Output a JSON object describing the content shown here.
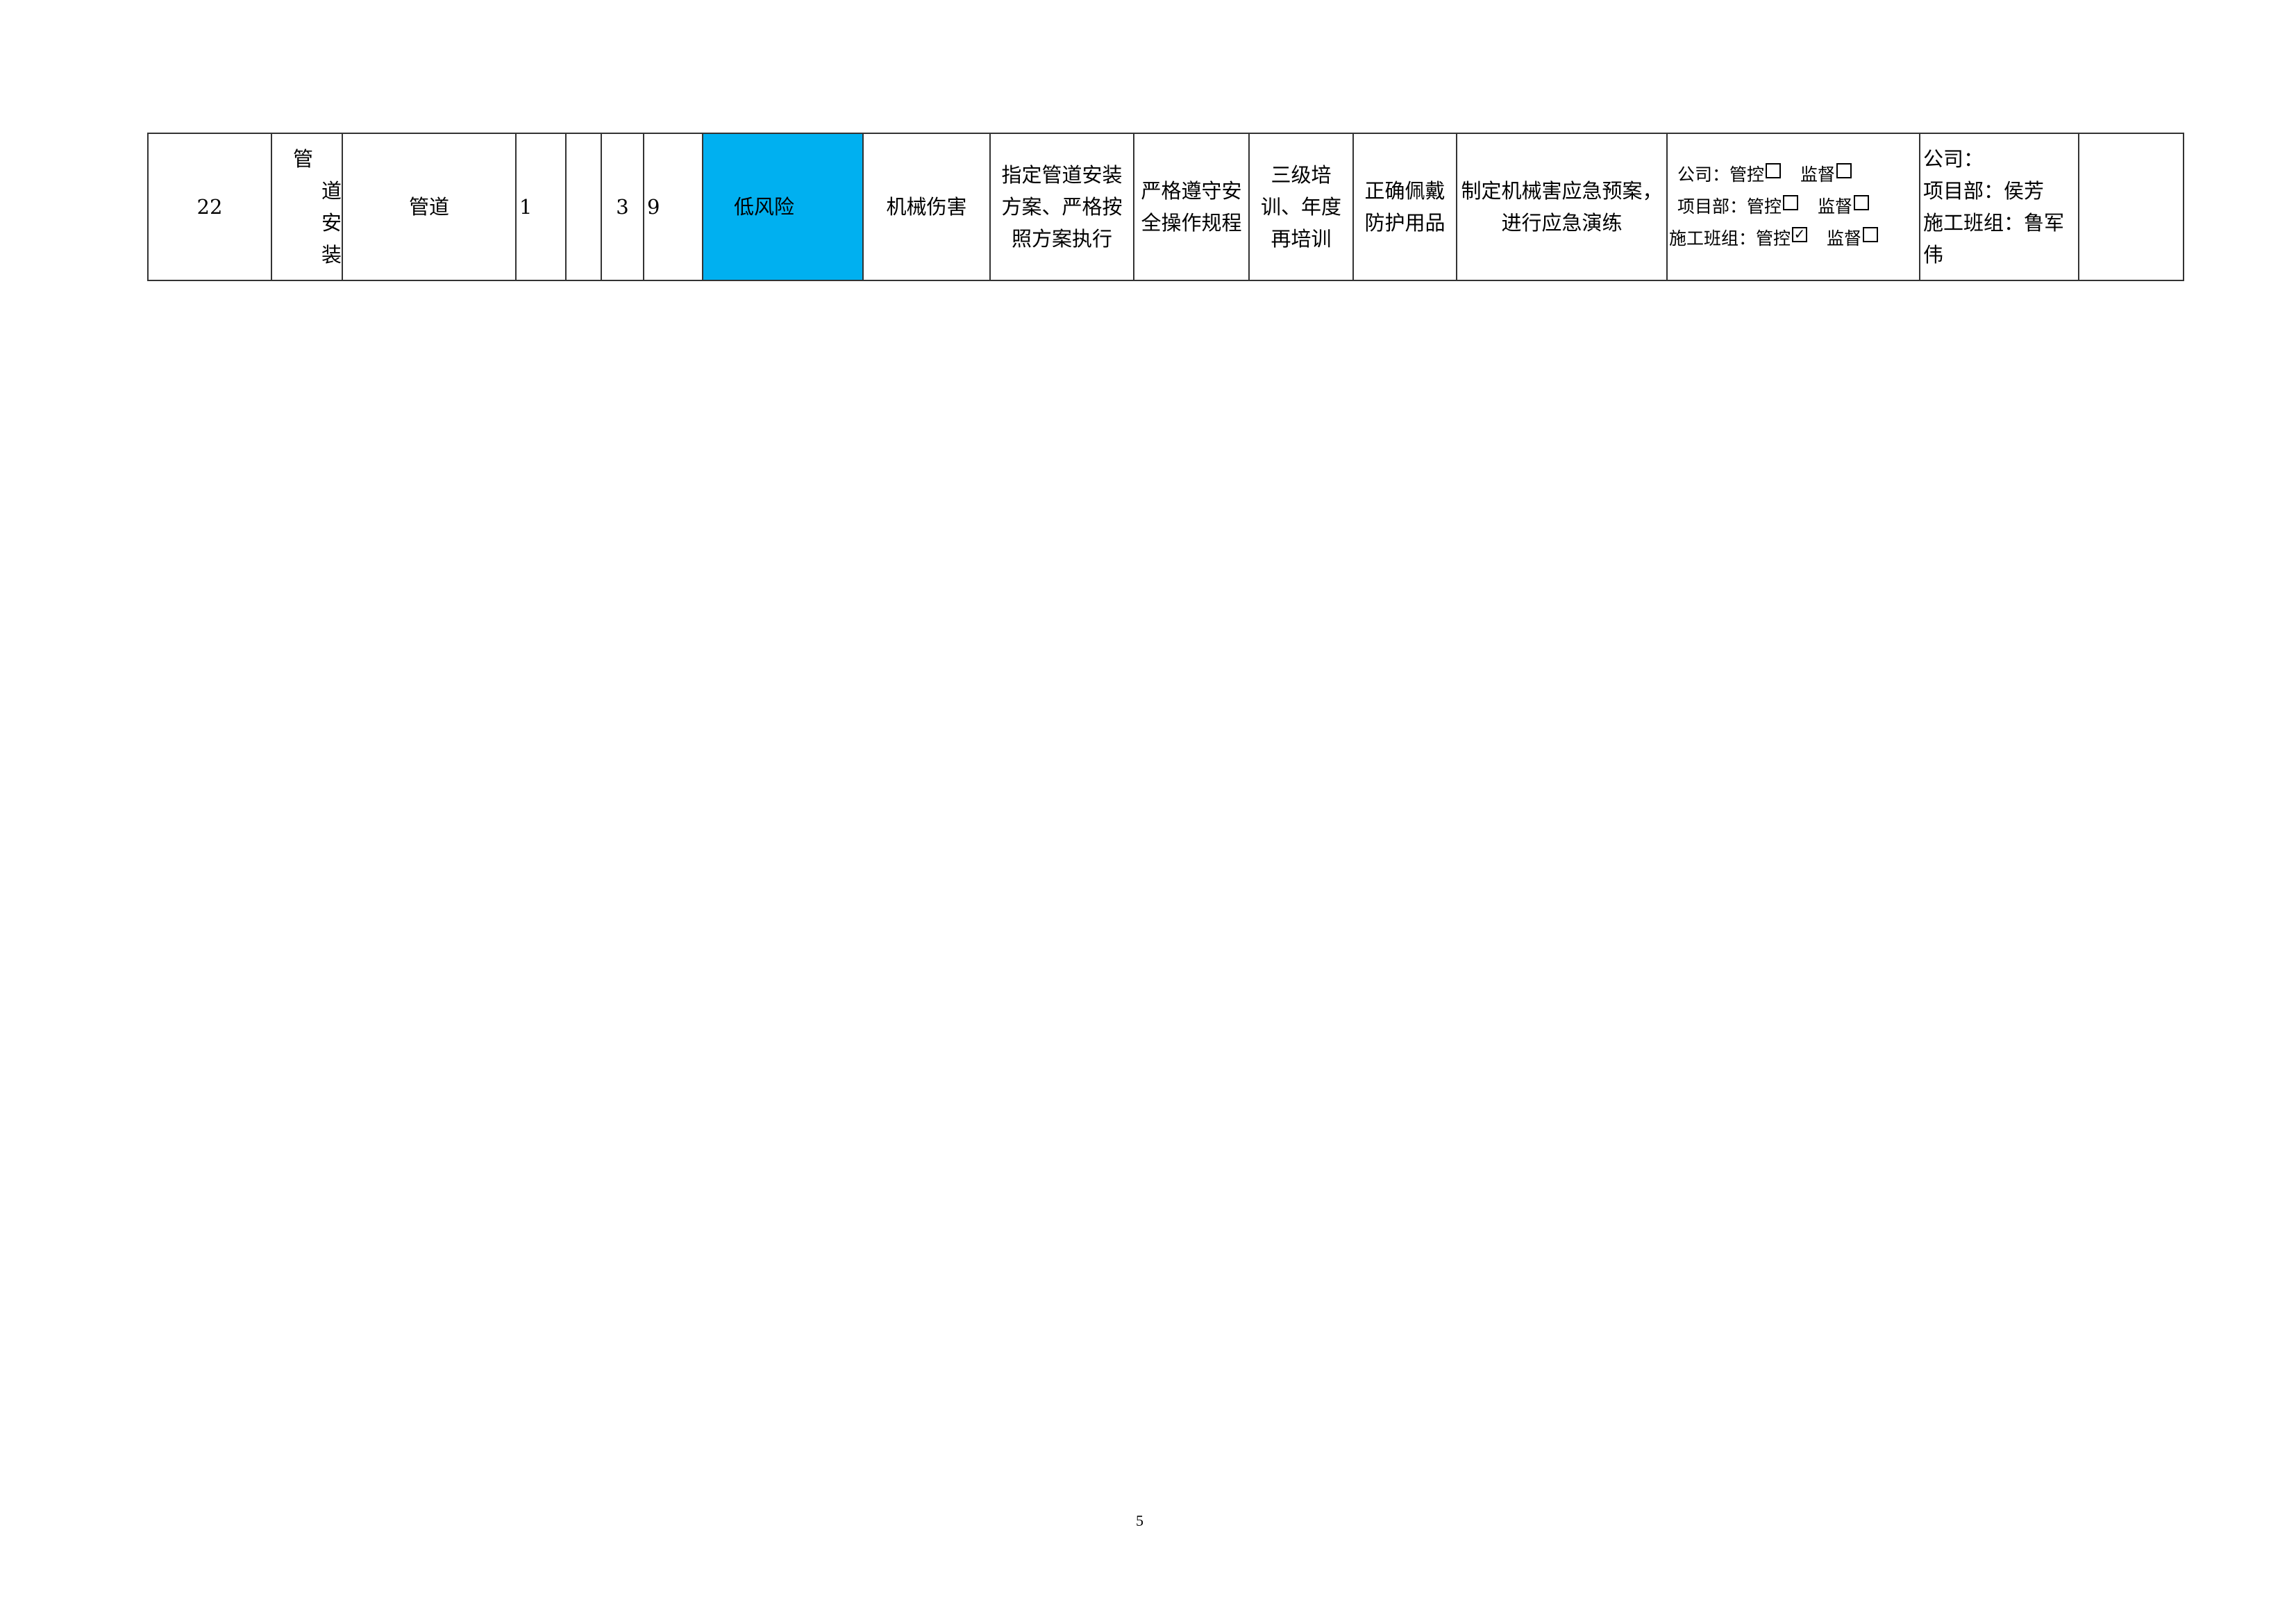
{
  "row": {
    "index": "22",
    "activity_chars": [
      "管",
      "道",
      "安",
      "装"
    ],
    "object": "管道",
    "l": "1",
    "e": "",
    "c": "3",
    "d": "9",
    "risk_level": "低风险",
    "hazard": "机械伤害",
    "engineering": "指定管道安装方案、严格按照方案执行",
    "management": "严格遵守安全操作规程",
    "training": "三级培训、年度再培训",
    "ppe": "正确佩戴防护用品",
    "emergency": "制定机械害应急预案，进行应急演练",
    "control_levels": [
      {
        "label": "公司：",
        "control": "管控",
        "control_checked": false,
        "supervise": "监督",
        "supervise_checked": false
      },
      {
        "label": "项目部：",
        "control": "管控",
        "control_checked": false,
        "supervise": "监督",
        "supervise_checked": false
      },
      {
        "label": "施工班组：",
        "control": "管控",
        "control_checked": true,
        "supervise": "监督",
        "supervise_checked": false
      }
    ],
    "responsible": [
      "公司：",
      "项目部：侯芳",
      "施工班组：鲁军伟"
    ],
    "remark": ""
  },
  "risk_color": "#00b0f0",
  "page_number": "5"
}
